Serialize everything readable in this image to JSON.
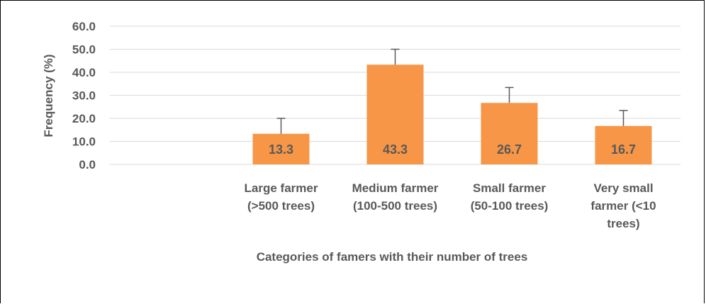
{
  "chart_data": {
    "type": "bar",
    "categories": [
      [
        "Large farmer",
        "(>500 trees)"
      ],
      [
        "Medium farmer",
        "(100-500 trees)"
      ],
      [
        "Small farmer",
        "(50-100 trees)"
      ],
      [
        "Very small",
        "farmer (<10",
        "trees)"
      ]
    ],
    "values": [
      13.3,
      43.3,
      26.7,
      16.7
    ],
    "value_labels": [
      "13.3",
      "43.3",
      "26.7",
      "16.7"
    ],
    "error_plus": [
      6.7,
      6.7,
      6.7,
      6.7
    ],
    "xlabel": "Categories of famers with their number of trees",
    "ylabel": "Frequency (%)",
    "ylim": [
      0,
      60
    ],
    "yticks": [
      "0.0",
      "10.0",
      "20.0",
      "30.0",
      "40.0",
      "50.0",
      "60.0"
    ],
    "grid": true,
    "colors": {
      "bar": "#F79646",
      "grid": "#D9D9D9",
      "text": "#595959",
      "error": "#595959"
    }
  }
}
